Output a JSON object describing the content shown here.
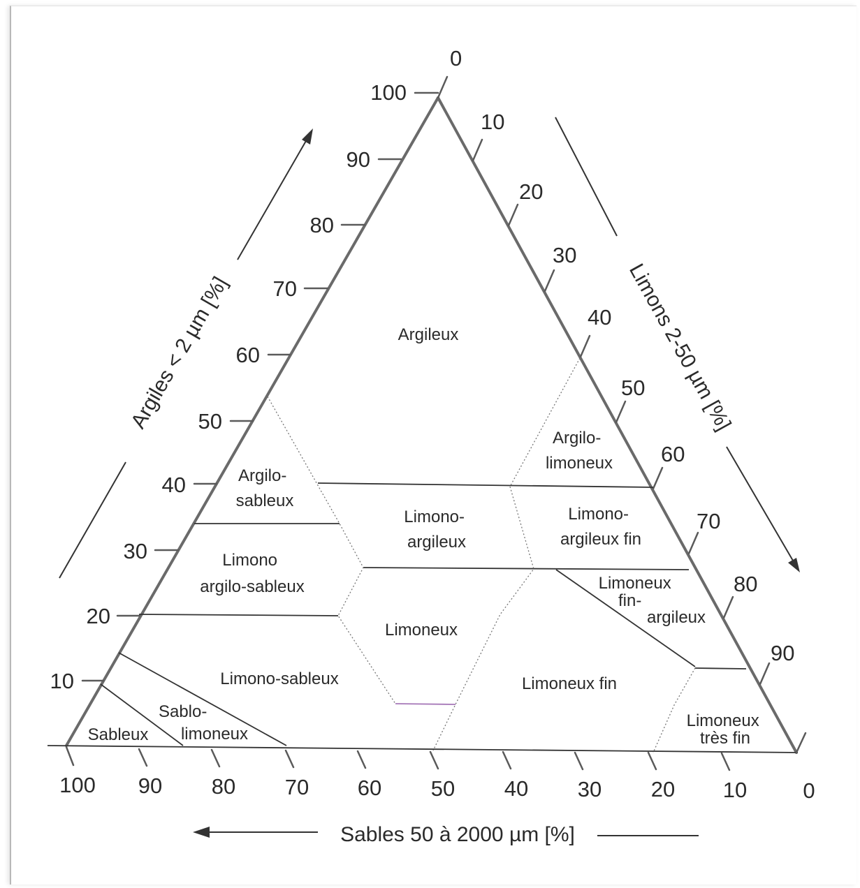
{
  "axes": {
    "clay": {
      "title": "Argiles < 2 µm [%]",
      "ticks": [
        "10",
        "20",
        "30",
        "40",
        "50",
        "60",
        "70",
        "80",
        "90",
        "100"
      ]
    },
    "silt": {
      "title": "Limons 2-50 µm [%]",
      "ticks": [
        "0",
        "10",
        "20",
        "30",
        "40",
        "50",
        "60",
        "70",
        "80",
        "90"
      ]
    },
    "sand": {
      "title": "Sables 50 à 2000 µm [%]",
      "ticks": [
        "100",
        "90",
        "80",
        "70",
        "60",
        "50",
        "40",
        "30",
        "20",
        "10",
        "0"
      ]
    }
  },
  "regions": [
    {
      "id": "argileux",
      "lines": [
        "Argileux"
      ]
    },
    {
      "id": "argilo-limoneux",
      "lines": [
        "Argilo-",
        "limoneux"
      ]
    },
    {
      "id": "argilo-sableux",
      "lines": [
        "Argilo-",
        "sableux"
      ]
    },
    {
      "id": "limono-argileux",
      "lines": [
        "Limono-",
        "argileux"
      ]
    },
    {
      "id": "limono-argileux-fin",
      "lines": [
        "Limono-",
        "argileux fin"
      ]
    },
    {
      "id": "limono-argilo-sableux",
      "lines": [
        "Limono",
        "argilo-sableux"
      ]
    },
    {
      "id": "limoneux-fin-argileux",
      "lines": [
        "Limoneux",
        "fin-",
        "argileux"
      ]
    },
    {
      "id": "limoneux",
      "lines": [
        "Limoneux"
      ]
    },
    {
      "id": "limono-sableux",
      "lines": [
        "Limono-sableux"
      ]
    },
    {
      "id": "limoneux-fin",
      "lines": [
        "Limoneux fin"
      ]
    },
    {
      "id": "sablo-limoneux",
      "lines": [
        "Sablo-",
        "limoneux"
      ]
    },
    {
      "id": "sableux",
      "lines": [
        "Sableux"
      ]
    },
    {
      "id": "limoneux-tres-fin",
      "lines": [
        "Limoneux",
        "très fin"
      ]
    }
  ]
}
